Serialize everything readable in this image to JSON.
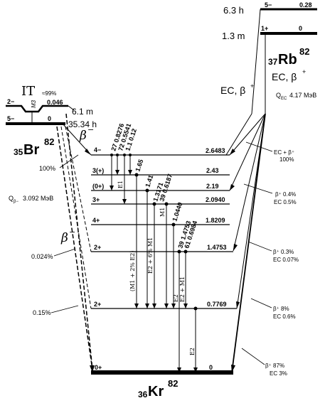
{
  "parents": {
    "rb82m": {
      "halflife": "6.3 h",
      "spin": "5−",
      "energy": "0.28"
    },
    "rb82": {
      "halflife": "1.3 m",
      "spin": "1+",
      "energy": "0",
      "symbol_z": "37",
      "symbol": "Rb",
      "symbol_a": "82"
    },
    "br82": {
      "halflife": "35.34 h",
      "spin": "5−",
      "energy": "0",
      "symbol_z": "35",
      "symbol": "Br",
      "symbol_a": "82"
    },
    "br82m": {
      "halflife": "6.1 m",
      "spin": "2−",
      "energy": "0.046",
      "it_label": "IT",
      "it_percent": "≈99%",
      "multipolarity": "M3"
    }
  },
  "daughter": {
    "symbol_z": "36",
    "symbol": "Kr",
    "symbol_a": "82"
  },
  "decay_labels": {
    "ec_beta_1": "EC, β",
    "ec_beta_1_sup": "+",
    "ec_beta_2": "EC, β",
    "ec_beta_2_sup": "+",
    "q_ec": "Q",
    "q_ec_sub": "EC",
    "q_ec_value": "4.17 МэВ",
    "q_beta": "Q",
    "q_beta_sub": "β−",
    "q_beta_value": "3.092 МэВ",
    "beta_minus_1": "β",
    "beta_minus_1_sup": "−",
    "beta_minus_2": "β",
    "beta_minus_2_sup": "−"
  },
  "levels": [
    {
      "spin": "4−",
      "energy": "2.6483",
      "br_minus": "100%",
      "ec_lines": [
        "EC + β⁺",
        "100%"
      ]
    },
    {
      "spin": "3(+)",
      "energy": "2.43",
      "br_minus": "",
      "ec_lines": []
    },
    {
      "spin": "(0+)",
      "energy": "2.19",
      "br_minus": "",
      "ec_lines": [
        "β⁺ 0.4%",
        "EC 0.5%"
      ]
    },
    {
      "spin": "3+",
      "energy": "2.0940",
      "br_minus": "",
      "ec_lines": []
    },
    {
      "spin": "4+",
      "energy": "1.8209",
      "br_minus": "",
      "ec_lines": []
    },
    {
      "spin": "2+",
      "energy": "1.4753",
      "br_minus": "0.024%",
      "ec_lines": [
        "β⁺ 0.3%",
        "EC 0.07%"
      ]
    },
    {
      "spin": "2+",
      "energy": "0.7769",
      "br_minus": "0.15%",
      "ec_lines": [
        "β⁺ 8%",
        "EC 0.6%"
      ]
    },
    {
      "spin": "0+",
      "energy": "0",
      "br_minus": "",
      "ec_lines": [
        "β⁺ 87%",
        "EC 3%"
      ]
    }
  ],
  "gamma_labels": {
    "g1": "27 0.8276",
    "g2": "72 0.5541",
    "g3": "1.1 0.12",
    "g4": "1.65",
    "g5": "1.41",
    "g6": "1.3171",
    "g7": "39 0.6187",
    "g8": "1.0440",
    "g9": "39 1.4753",
    "g10": "61 0.6984",
    "mult_e1": "E1",
    "mult_m1e2_a": "(M1 + 2% E2)",
    "mult_e2m1_6": "E2 + 6% M1",
    "mult_m1": "M1",
    "mult_e2": "E2",
    "mult_e2m1": "E2 + M1",
    "mult_e2_low": "E2"
  }
}
